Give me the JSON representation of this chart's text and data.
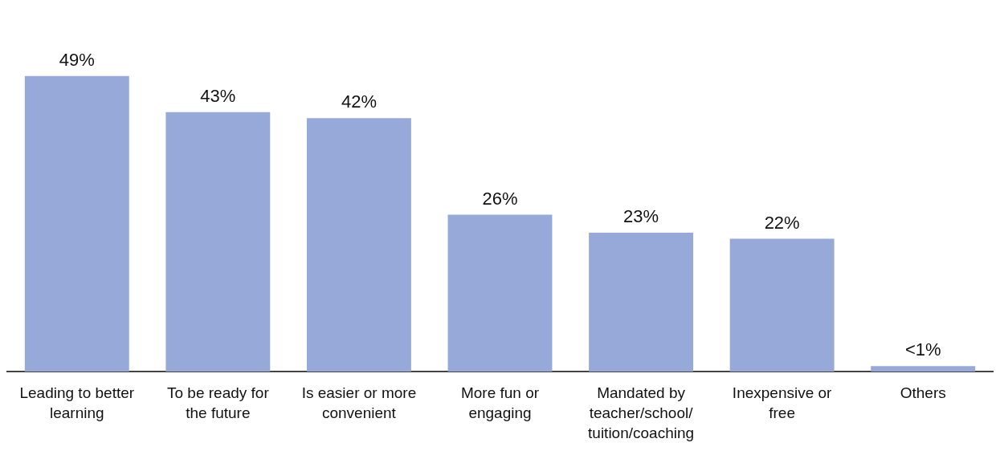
{
  "chart_data": {
    "type": "bar",
    "categories": [
      "Leading to better learning",
      "To be ready for the future",
      "Is easier or more convenient",
      "More fun or engaging",
      "Mandated by teacher/school/ tuition/coaching",
      "Inexpensive or free",
      "Others"
    ],
    "values": [
      49,
      43,
      42,
      26,
      23,
      22,
      0.9
    ],
    "value_labels": [
      "49%",
      "43%",
      "42%",
      "26%",
      "23%",
      "22%",
      "<1%"
    ],
    "color": "#97a9d9",
    "grid": false,
    "legend": false
  }
}
